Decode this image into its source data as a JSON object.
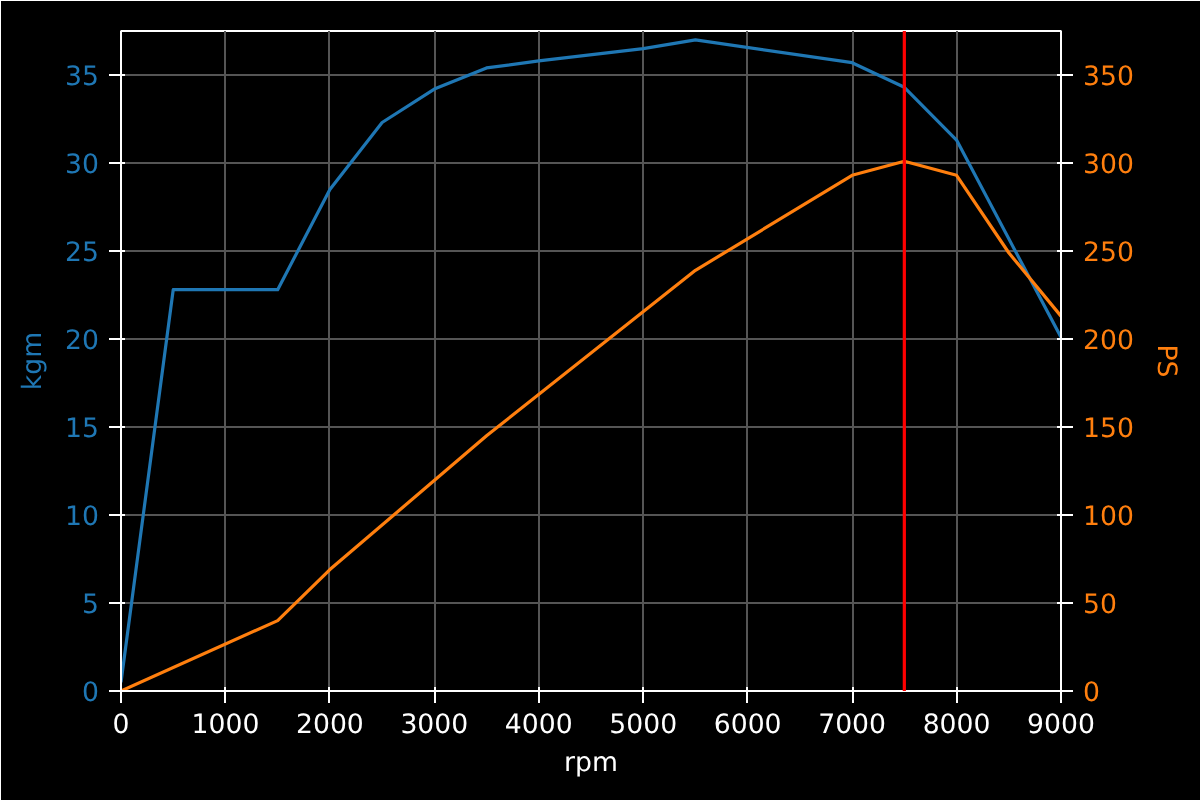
{
  "chart_data": {
    "type": "line",
    "xlabel": "rpm",
    "ylabel": "kgm",
    "y2label": "PS",
    "xlim": [
      0,
      9000
    ],
    "xticks": [
      0,
      1000,
      2000,
      3000,
      4000,
      5000,
      6000,
      7000,
      8000,
      9000
    ],
    "ylim": [
      0,
      37.5
    ],
    "yticks": [
      0,
      5,
      10,
      15,
      20,
      25,
      30,
      35
    ],
    "y2lim": [
      0,
      375
    ],
    "y2ticks": [
      0,
      50,
      100,
      150,
      200,
      250,
      300,
      350
    ],
    "grid": true,
    "series": [
      {
        "color": "#1f77b4",
        "x": [
          0,
          500,
          1500,
          2000,
          2500,
          3000,
          3500,
          4000,
          5000,
          5500,
          7000,
          7500,
          8000,
          9000
        ],
        "values": [
          0.5,
          22.8,
          22.8,
          28.5,
          32.3,
          34.2,
          35.4,
          35.8,
          36.5,
          37.0,
          35.7,
          34.3,
          31.3,
          20.1
        ]
      },
      {
        "color": "#ff7f0e",
        "axis": "y2",
        "x": [
          0,
          1500,
          2000,
          3500,
          5500,
          7000,
          7500,
          8000,
          8500,
          9000
        ],
        "values": [
          0,
          40,
          69,
          145,
          239,
          293,
          301,
          293,
          249,
          213
        ]
      }
    ],
    "ref_lines": [
      {
        "axis": "x",
        "value": 7500,
        "color": "#ff0000"
      }
    ]
  }
}
